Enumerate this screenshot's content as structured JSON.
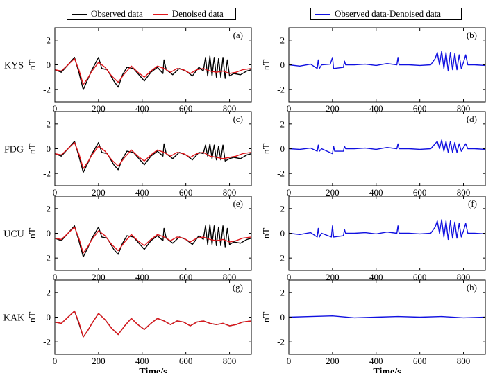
{
  "legend_left": {
    "observed": "Observed data",
    "denoised": "Denoised data"
  },
  "legend_right": {
    "residual": "Observed data-Denoised data"
  },
  "colors": {
    "observed": "#000000",
    "denoised": "#e0161b",
    "residual": "#1010e0"
  },
  "chart_data": [
    {
      "panel": "(a)",
      "station": "KYS",
      "type": "line",
      "xlabel": "",
      "ylabel": "nT",
      "xlim": [
        0,
        900
      ],
      "ylim": [
        -3,
        3
      ],
      "xticks": [
        0,
        200,
        400,
        600,
        800
      ],
      "yticks": [
        -2,
        0,
        2
      ],
      "series": [
        {
          "name": "Observed data",
          "x": [
            0,
            30,
            60,
            90,
            110,
            130,
            150,
            170,
            185,
            200,
            215,
            240,
            270,
            290,
            310,
            330,
            360,
            390,
            410,
            440,
            470,
            495,
            500,
            510,
            540,
            570,
            600,
            630,
            660,
            680,
            690,
            700,
            710,
            720,
            730,
            740,
            750,
            760,
            770,
            780,
            790,
            800,
            820,
            850,
            880,
            900
          ],
          "y": [
            -0.4,
            -0.6,
            0.0,
            0.6,
            -0.6,
            -2.0,
            -1.2,
            -0.4,
            0.1,
            0.6,
            -0.3,
            -0.4,
            -1.3,
            -1.8,
            -0.8,
            -0.2,
            -0.3,
            -0.9,
            -1.3,
            -0.6,
            -0.2,
            -0.7,
            0.4,
            -0.4,
            -0.8,
            -0.3,
            -0.5,
            -0.9,
            -0.2,
            -0.5,
            0.6,
            -0.9,
            0.7,
            -0.9,
            0.6,
            -1.0,
            0.5,
            -1.0,
            0.6,
            -1.1,
            0.4,
            -0.9,
            -0.7,
            -0.8,
            -0.5,
            -0.4
          ]
        },
        {
          "name": "Denoised data",
          "x": [
            0,
            30,
            60,
            90,
            110,
            130,
            150,
            170,
            200,
            230,
            260,
            290,
            320,
            350,
            380,
            410,
            440,
            470,
            500,
            530,
            560,
            590,
            620,
            650,
            680,
            710,
            740,
            770,
            800,
            830,
            860,
            900
          ],
          "y": [
            -0.4,
            -0.5,
            0.0,
            0.5,
            -0.4,
            -1.6,
            -1.1,
            -0.5,
            0.2,
            -0.2,
            -0.9,
            -1.4,
            -0.7,
            -0.1,
            -0.6,
            -1.0,
            -0.5,
            -0.1,
            -0.3,
            -0.6,
            -0.3,
            -0.4,
            -0.7,
            -0.4,
            -0.3,
            -0.5,
            -0.6,
            -0.5,
            -0.7,
            -0.6,
            -0.4,
            -0.3
          ]
        }
      ]
    },
    {
      "panel": "(b)",
      "station": "",
      "type": "line",
      "xlabel": "",
      "ylabel": "nT",
      "xlim": [
        0,
        900
      ],
      "ylim": [
        -3,
        3
      ],
      "xticks": [
        0,
        200,
        400,
        600,
        800
      ],
      "yticks": [
        -2,
        0,
        2
      ],
      "series": [
        {
          "name": "Observed data-Denoised data",
          "x": [
            0,
            50,
            100,
            130,
            135,
            140,
            150,
            190,
            200,
            205,
            250,
            255,
            260,
            300,
            350,
            400,
            450,
            495,
            500,
            505,
            550,
            600,
            650,
            670,
            680,
            690,
            700,
            710,
            720,
            730,
            740,
            750,
            760,
            770,
            780,
            790,
            800,
            810,
            820,
            850,
            900
          ],
          "y": [
            0.0,
            -0.1,
            0.05,
            -0.3,
            0.4,
            -0.3,
            0.0,
            0.05,
            0.6,
            -0.3,
            -0.2,
            0.3,
            0.0,
            0.0,
            0.05,
            -0.05,
            0.1,
            0.0,
            0.6,
            0.0,
            0.0,
            -0.05,
            0.0,
            0.5,
            1.0,
            0.0,
            1.1,
            -0.3,
            1.0,
            -0.5,
            1.0,
            -0.4,
            0.9,
            -0.4,
            0.8,
            -0.3,
            0.2,
            0.8,
            0.0,
            0.0,
            -0.05
          ]
        }
      ]
    },
    {
      "panel": "(c)",
      "station": "FDG",
      "type": "line",
      "xlabel": "",
      "ylabel": "nT",
      "xlim": [
        0,
        900
      ],
      "ylim": [
        -3,
        3
      ],
      "xticks": [
        0,
        200,
        400,
        600,
        800
      ],
      "yticks": [
        -2,
        0,
        2
      ],
      "series": [
        {
          "name": "Observed data",
          "x": [
            0,
            30,
            60,
            90,
            110,
            130,
            150,
            170,
            200,
            215,
            240,
            270,
            290,
            310,
            330,
            360,
            390,
            410,
            440,
            470,
            495,
            500,
            510,
            540,
            570,
            600,
            630,
            660,
            680,
            690,
            700,
            710,
            720,
            730,
            740,
            750,
            760,
            770,
            780,
            800,
            820,
            850,
            880,
            900
          ],
          "y": [
            -0.4,
            -0.6,
            0.0,
            0.6,
            -0.6,
            -1.9,
            -1.2,
            -0.4,
            0.5,
            -0.3,
            -0.4,
            -1.3,
            -1.7,
            -0.8,
            -0.2,
            -0.3,
            -0.9,
            -1.3,
            -0.6,
            -0.2,
            -0.6,
            0.4,
            -0.4,
            -0.8,
            -0.3,
            -0.5,
            -0.9,
            -0.3,
            -0.4,
            0.3,
            -0.6,
            0.4,
            -0.8,
            0.3,
            -0.9,
            0.2,
            -0.9,
            0.3,
            -1.0,
            -0.8,
            -0.7,
            -0.8,
            -0.5,
            -0.4
          ]
        },
        {
          "name": "Denoised data",
          "x": [
            0,
            30,
            60,
            90,
            110,
            130,
            150,
            170,
            200,
            230,
            260,
            290,
            320,
            350,
            380,
            410,
            440,
            470,
            500,
            530,
            560,
            590,
            620,
            650,
            680,
            710,
            740,
            770,
            800,
            830,
            860,
            900
          ],
          "y": [
            -0.4,
            -0.5,
            0.0,
            0.5,
            -0.4,
            -1.6,
            -1.1,
            -0.5,
            0.2,
            -0.2,
            -0.9,
            -1.4,
            -0.7,
            -0.1,
            -0.6,
            -1.0,
            -0.5,
            -0.1,
            -0.3,
            -0.6,
            -0.3,
            -0.4,
            -0.7,
            -0.4,
            -0.3,
            -0.6,
            -0.7,
            -0.8,
            -0.7,
            -0.6,
            -0.4,
            -0.3
          ]
        }
      ]
    },
    {
      "panel": "(d)",
      "station": "",
      "type": "line",
      "xlabel": "",
      "ylabel": "nT",
      "xlim": [
        0,
        900
      ],
      "ylim": [
        -3,
        3
      ],
      "xticks": [
        0,
        200,
        400,
        600,
        800
      ],
      "yticks": [
        -2,
        0,
        2
      ],
      "series": [
        {
          "name": "Observed data-Denoised data",
          "x": [
            0,
            50,
            100,
            130,
            135,
            140,
            150,
            200,
            205,
            210,
            250,
            255,
            260,
            300,
            350,
            400,
            450,
            495,
            500,
            505,
            550,
            600,
            650,
            680,
            690,
            700,
            710,
            720,
            730,
            740,
            750,
            760,
            770,
            780,
            790,
            800,
            810,
            820,
            850,
            900
          ],
          "y": [
            0.0,
            -0.05,
            0.05,
            -0.2,
            0.3,
            -0.2,
            0.0,
            -0.4,
            0.2,
            -0.2,
            -0.2,
            0.2,
            0.0,
            0.0,
            0.05,
            -0.05,
            0.1,
            0.0,
            0.4,
            0.0,
            0.0,
            -0.05,
            0.0,
            0.6,
            0.0,
            0.7,
            -0.2,
            0.6,
            -0.3,
            0.6,
            -0.3,
            0.5,
            -0.3,
            0.4,
            -0.2,
            0.1,
            0.4,
            0.0,
            0.0,
            -0.05
          ]
        }
      ]
    },
    {
      "panel": "(e)",
      "station": "UCU",
      "type": "line",
      "xlabel": "",
      "ylabel": "nT",
      "xlim": [
        0,
        900
      ],
      "ylim": [
        -3,
        3
      ],
      "xticks": [
        0,
        200,
        400,
        600,
        800
      ],
      "yticks": [
        -2,
        0,
        2
      ],
      "series": [
        {
          "name": "Observed data",
          "x": [
            0,
            30,
            60,
            90,
            110,
            130,
            150,
            170,
            200,
            215,
            240,
            270,
            290,
            310,
            330,
            360,
            390,
            410,
            440,
            470,
            495,
            500,
            510,
            540,
            570,
            600,
            630,
            660,
            680,
            690,
            700,
            710,
            720,
            730,
            740,
            750,
            760,
            770,
            780,
            790,
            800,
            820,
            850,
            880,
            900
          ],
          "y": [
            -0.4,
            -0.6,
            0.0,
            0.6,
            -0.6,
            -1.9,
            -1.2,
            -0.4,
            0.5,
            -0.3,
            -0.4,
            -1.3,
            -1.7,
            -0.8,
            -0.2,
            -0.3,
            -0.9,
            -1.3,
            -0.6,
            -0.2,
            -0.6,
            0.4,
            -0.4,
            -0.8,
            -0.3,
            -0.5,
            -0.9,
            -0.2,
            -0.5,
            0.6,
            -0.9,
            0.7,
            -0.9,
            0.6,
            -1.0,
            0.5,
            -1.0,
            0.6,
            -1.1,
            0.4,
            -0.9,
            -0.7,
            -0.8,
            -0.5,
            -0.4
          ]
        },
        {
          "name": "Denoised data",
          "x": [
            0,
            30,
            60,
            90,
            110,
            130,
            150,
            170,
            200,
            230,
            260,
            290,
            320,
            350,
            380,
            410,
            440,
            470,
            500,
            530,
            560,
            590,
            620,
            650,
            680,
            710,
            740,
            770,
            800,
            830,
            860,
            900
          ],
          "y": [
            -0.4,
            -0.5,
            0.0,
            0.5,
            -0.4,
            -1.6,
            -1.1,
            -0.5,
            0.2,
            -0.2,
            -0.9,
            -1.4,
            -0.7,
            -0.1,
            -0.6,
            -1.0,
            -0.5,
            -0.1,
            -0.3,
            -0.6,
            -0.3,
            -0.4,
            -0.7,
            -0.4,
            -0.3,
            -0.5,
            -0.6,
            -0.5,
            -0.7,
            -0.6,
            -0.4,
            -0.3
          ]
        }
      ]
    },
    {
      "panel": "(f)",
      "station": "",
      "type": "line",
      "xlabel": "",
      "ylabel": "nT",
      "xlim": [
        0,
        900
      ],
      "ylim": [
        -3,
        3
      ],
      "xticks": [
        0,
        200,
        400,
        600,
        800
      ],
      "yticks": [
        -2,
        0,
        2
      ],
      "series": [
        {
          "name": "Observed data-Denoised data",
          "x": [
            0,
            50,
            100,
            130,
            135,
            140,
            150,
            195,
            200,
            205,
            250,
            255,
            260,
            300,
            350,
            400,
            450,
            495,
            500,
            505,
            550,
            600,
            650,
            670,
            680,
            690,
            700,
            710,
            720,
            730,
            740,
            750,
            760,
            770,
            780,
            790,
            800,
            810,
            820,
            850,
            900
          ],
          "y": [
            0.0,
            -0.1,
            0.05,
            -0.3,
            0.4,
            -0.3,
            0.0,
            -0.3,
            0.6,
            -0.3,
            -0.2,
            0.3,
            0.0,
            0.0,
            0.05,
            -0.05,
            0.1,
            0.0,
            0.6,
            0.0,
            0.0,
            -0.05,
            0.0,
            0.5,
            1.0,
            0.0,
            1.1,
            -0.3,
            1.0,
            -0.5,
            1.0,
            -0.4,
            0.9,
            -0.4,
            0.8,
            -0.3,
            0.2,
            0.8,
            0.0,
            0.0,
            -0.05
          ]
        }
      ]
    },
    {
      "panel": "(g)",
      "station": "KAK",
      "type": "line",
      "xlabel": "Time/s",
      "ylabel": "nT",
      "xlim": [
        0,
        900
      ],
      "ylim": [
        -3,
        3
      ],
      "xticks": [
        0,
        200,
        400,
        600,
        800
      ],
      "yticks": [
        -2,
        0,
        2
      ],
      "series": [
        {
          "name": "Observed data",
          "x": [
            0,
            30,
            60,
            90,
            110,
            130,
            150,
            170,
            200,
            230,
            260,
            290,
            320,
            350,
            380,
            410,
            440,
            470,
            500,
            530,
            560,
            590,
            620,
            650,
            680,
            710,
            740,
            770,
            800,
            830,
            860,
            900
          ],
          "y": [
            -0.4,
            -0.5,
            0.0,
            0.5,
            -0.5,
            -1.6,
            -1.1,
            -0.5,
            0.3,
            -0.2,
            -0.9,
            -1.4,
            -0.7,
            -0.1,
            -0.6,
            -1.0,
            -0.5,
            -0.1,
            -0.3,
            -0.6,
            -0.3,
            -0.4,
            -0.7,
            -0.4,
            -0.3,
            -0.5,
            -0.6,
            -0.5,
            -0.7,
            -0.6,
            -0.4,
            -0.3
          ]
        },
        {
          "name": "Denoised data",
          "x": [
            0,
            30,
            60,
            90,
            110,
            130,
            150,
            170,
            200,
            230,
            260,
            290,
            320,
            350,
            380,
            410,
            440,
            470,
            500,
            530,
            560,
            590,
            620,
            650,
            680,
            710,
            740,
            770,
            800,
            830,
            860,
            900
          ],
          "y": [
            -0.4,
            -0.5,
            0.0,
            0.5,
            -0.4,
            -1.6,
            -1.1,
            -0.5,
            0.3,
            -0.2,
            -0.9,
            -1.4,
            -0.7,
            -0.1,
            -0.6,
            -1.0,
            -0.5,
            -0.1,
            -0.3,
            -0.6,
            -0.3,
            -0.4,
            -0.7,
            -0.4,
            -0.3,
            -0.5,
            -0.6,
            -0.5,
            -0.7,
            -0.6,
            -0.4,
            -0.3
          ]
        }
      ]
    },
    {
      "panel": "(h)",
      "station": "",
      "type": "line",
      "xlabel": "Time/s",
      "ylabel": "nT",
      "xlim": [
        0,
        900
      ],
      "ylim": [
        -3,
        3
      ],
      "xticks": [
        0,
        200,
        400,
        600,
        800
      ],
      "yticks": [
        -2,
        0,
        2
      ],
      "series": [
        {
          "name": "Observed data-Denoised data",
          "x": [
            0,
            100,
            200,
            300,
            400,
            500,
            600,
            700,
            800,
            900
          ],
          "y": [
            0.0,
            0.05,
            0.1,
            -0.05,
            0.0,
            0.05,
            0.0,
            0.05,
            -0.05,
            0.0
          ]
        }
      ]
    }
  ]
}
